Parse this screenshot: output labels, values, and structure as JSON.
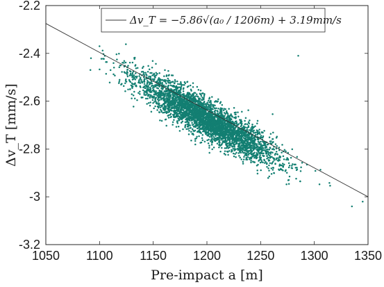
{
  "chart_data": {
    "type": "scatter",
    "title": "",
    "xlabel": "Pre-impact a [m]",
    "ylabel": "Δv_T [mm/s]",
    "xlim": [
      1050,
      1350
    ],
    "ylim": [
      -3.2,
      -2.2
    ],
    "xticks": [
      "1050",
      "1100",
      "1150",
      "1200",
      "1250",
      "1300",
      "1350"
    ],
    "yticks": [
      "-2.2",
      "-2.4",
      "-2.6",
      "-2.8",
      "-3",
      "-3.2"
    ],
    "grid": false,
    "legend_position": "top",
    "legend": {
      "label": "Δv_T = −5.86√(a₀ / 1206m) + 3.19mm/s"
    },
    "colors": {
      "points": "#137f72",
      "fit_line": "#333333",
      "axes": "#262626"
    },
    "series": [
      {
        "type": "scatter",
        "point_count": 4000,
        "x_mean": 1200,
        "x_std": 32,
        "slope_per_m": -0.00246,
        "intercept_at_1200": -2.675,
        "residual_std": 0.04,
        "x_range": [
          1090,
          1345
        ],
        "outliers": [
          {
            "x": 1285,
            "y": -2.41
          },
          {
            "x": 1335,
            "y": -3.04
          },
          {
            "x": 1345,
            "y": -3.02
          },
          {
            "x": 1092,
            "y": -2.42
          },
          {
            "x": 1100,
            "y": -2.37
          }
        ]
      },
      {
        "type": "line",
        "x": [
          1050,
          1350
        ],
        "y": [
          -2.275,
          -3.0
        ]
      }
    ]
  }
}
